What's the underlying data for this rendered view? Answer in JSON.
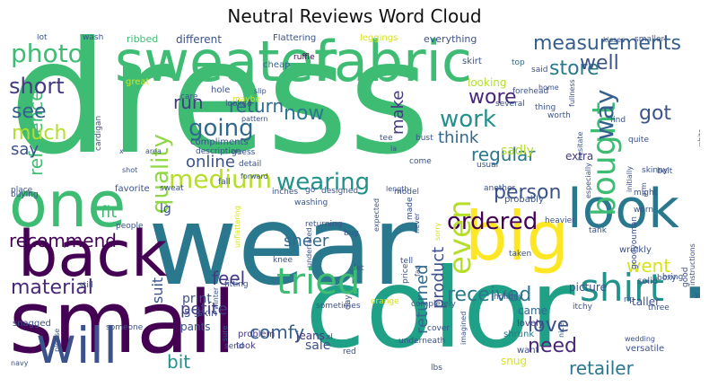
{
  "title": "Neutral Reviews Word Cloud",
  "words": [
    {
      "text": "dress",
      "color": "#3fbc73"
    },
    {
      "text": "wear",
      "color": "#2a788e"
    },
    {
      "text": "size",
      "color": "#2a788e"
    },
    {
      "text": "color",
      "color": "#1fa187"
    },
    {
      "text": "small",
      "color": "#440154"
    },
    {
      "text": "back",
      "color": "#440154"
    },
    {
      "text": "sweater",
      "color": "#3fbc73"
    },
    {
      "text": "fabric",
      "color": "#3fbc73"
    },
    {
      "text": "big",
      "color": "#fde725"
    },
    {
      "text": "one",
      "color": "#3fbc73"
    },
    {
      "text": "look",
      "color": "#2a788e"
    },
    {
      "text": "will",
      "color": "#3b528b"
    },
    {
      "text": "tried",
      "color": "#3fbc73"
    },
    {
      "text": "shirt",
      "color": "#21918c"
    },
    {
      "text": "bought",
      "color": "#3fbc73"
    },
    {
      "text": "measurements",
      "color": "#355f8d"
    },
    {
      "text": "photo",
      "color": "#3fbc73"
    },
    {
      "text": "wearing",
      "color": "#21918c"
    },
    {
      "text": "quality",
      "color": "#8fd744"
    },
    {
      "text": "medium",
      "color": "#b5de2b"
    },
    {
      "text": "ordered",
      "color": "#440154"
    },
    {
      "text": "work",
      "color": "#21918c"
    },
    {
      "text": "going",
      "color": "#31688e"
    },
    {
      "text": "received",
      "color": "#2a788e"
    },
    {
      "text": "material",
      "color": "#482878"
    },
    {
      "text": "even",
      "color": "#b5de2b"
    },
    {
      "text": "way",
      "color": "#355f8d"
    },
    {
      "text": "retailer",
      "color": "#2a788e"
    },
    {
      "text": "store",
      "color": "#2a788e"
    },
    {
      "text": "well",
      "color": "#3b528b"
    },
    {
      "text": "wore",
      "color": "#482878"
    },
    {
      "text": "reference",
      "color": "#3fbc73"
    },
    {
      "text": "short",
      "color": "#443983"
    },
    {
      "text": "much",
      "color": "#b5de2b"
    },
    {
      "text": "run",
      "color": "#443983"
    },
    {
      "text": "see",
      "color": "#355f8d"
    },
    {
      "text": "return",
      "color": "#31688e"
    },
    {
      "text": "now",
      "color": "#2a788e"
    },
    {
      "text": "love",
      "color": "#3b528b"
    },
    {
      "text": "need",
      "color": "#482878"
    },
    {
      "text": "got",
      "color": "#3b528b"
    },
    {
      "text": "feel",
      "color": "#443983"
    },
    {
      "text": "sheer",
      "color": "#31688e"
    },
    {
      "text": "comfy",
      "color": "#355f8d"
    },
    {
      "text": "bit",
      "color": "#21918c"
    },
    {
      "text": "petite",
      "color": "#443983"
    },
    {
      "text": "person",
      "color": "#3b528b"
    },
    {
      "text": "online",
      "color": "#3b528b"
    },
    {
      "text": "fit",
      "color": "#3fbc73"
    },
    {
      "text": "recommend",
      "color": "#440154"
    },
    {
      "text": "regular",
      "color": "#2a788e"
    },
    {
      "text": "think",
      "color": "#31688e"
    },
    {
      "text": "make",
      "color": "#443983"
    },
    {
      "text": "say",
      "color": "#3b528b"
    },
    {
      "text": "product",
      "color": "#3b528b"
    },
    {
      "text": "returned",
      "color": "#31688e"
    },
    {
      "text": "went",
      "color": "#d8e219"
    },
    {
      "text": "suit",
      "color": "#3b528b"
    },
    {
      "text": "lg",
      "color": "#3b528b"
    },
    {
      "text": "print",
      "color": "#3b528b"
    },
    {
      "text": "5'3",
      "color": "#3b528b"
    },
    {
      "text": "pants",
      "color": "#3b528b"
    },
    {
      "text": "skin",
      "color": "#3b528b"
    },
    {
      "text": "sale",
      "color": "#3b528b"
    },
    {
      "text": "jeans",
      "color": "#443983"
    },
    {
      "text": "problem",
      "color": "#443983"
    },
    {
      "text": "took",
      "color": "#443983"
    },
    {
      "text": "extra",
      "color": "#443983"
    },
    {
      "text": "lovely",
      "color": "#443983"
    },
    {
      "text": "shrunk",
      "color": "#2a788e"
    },
    {
      "text": "want",
      "color": "#3b528b"
    },
    {
      "text": "snug",
      "color": "#d8e219"
    },
    {
      "text": "came",
      "color": "#31688e"
    },
    {
      "text": "picture",
      "color": "#3b528b"
    },
    {
      "text": "taller",
      "color": "#3b528b"
    },
    {
      "text": "versatile",
      "color": "#3b528b"
    },
    {
      "text": "sadly",
      "color": "#b5de2b"
    },
    {
      "text": "probably",
      "color": "#3b528b"
    },
    {
      "text": "different",
      "color": "#3b528b"
    },
    {
      "text": "everything",
      "color": "#3b528b"
    },
    {
      "text": "wash",
      "color": "#3b528b"
    },
    {
      "text": "lot",
      "color": "#3b528b"
    },
    {
      "text": "ribbed",
      "color": "#3fbc73"
    },
    {
      "text": "Flattering",
      "color": "#3b528b"
    },
    {
      "text": "leggings",
      "color": "#d8e219"
    },
    {
      "text": "smaller",
      "color": "#3b528b"
    },
    {
      "text": "cheap",
      "color": "#31688e"
    },
    {
      "text": "ruffle",
      "color": "#440154"
    },
    {
      "text": "skirt",
      "color": "#3b528b"
    },
    {
      "text": "top",
      "color": "#31688e"
    },
    {
      "text": "said",
      "color": "#3b528b"
    },
    {
      "text": "looking",
      "color": "#b5de2b"
    },
    {
      "text": "hole",
      "color": "#3b528b"
    },
    {
      "text": "looked",
      "color": "#3b528b"
    },
    {
      "text": "several",
      "color": "#3b528b"
    },
    {
      "text": "thing",
      "color": "#3b528b"
    },
    {
      "text": "worth",
      "color": "#3b528b"
    },
    {
      "text": "find",
      "color": "#3b528b"
    },
    {
      "text": "quite",
      "color": "#3b528b"
    },
    {
      "text": "skinny",
      "color": "#3b528b"
    },
    {
      "text": "belt",
      "color": "#3b528b"
    },
    {
      "text": "compliments",
      "color": "#3b528b"
    },
    {
      "text": "description",
      "color": "#3b528b"
    },
    {
      "text": "maybe",
      "color": "#d8e219"
    },
    {
      "text": "great",
      "color": "#d8e219"
    },
    {
      "text": "care",
      "color": "#3b528b"
    },
    {
      "text": "guess",
      "color": "#3b528b"
    },
    {
      "text": "fall",
      "color": "#3b528b"
    },
    {
      "text": "detail",
      "color": "#3b528b"
    },
    {
      "text": "cardigan",
      "color": "#3b528b"
    },
    {
      "text": "tee",
      "color": "#3b528b"
    },
    {
      "text": "come",
      "color": "#3b528b"
    },
    {
      "text": "bust",
      "color": "#3b528b"
    },
    {
      "text": "usual",
      "color": "#3b528b"
    },
    {
      "text": "another",
      "color": "#3b528b"
    },
    {
      "text": "might",
      "color": "#3b528b"
    },
    {
      "text": "worn",
      "color": "#3b528b"
    },
    {
      "text": "buying",
      "color": "#3b528b"
    },
    {
      "text": "place",
      "color": "#3b528b"
    },
    {
      "text": "favorite",
      "color": "#3b528b"
    },
    {
      "text": "sweat",
      "color": "#3b528b"
    },
    {
      "text": "inches",
      "color": "#3b528b"
    },
    {
      "text": "go",
      "color": "#3b528b"
    },
    {
      "text": "designed",
      "color": "#3b528b"
    },
    {
      "text": "model",
      "color": "#3b528b"
    },
    {
      "text": "people",
      "color": "#3b528b"
    },
    {
      "text": "washing",
      "color": "#3b528b"
    },
    {
      "text": "returning",
      "color": "#3b528b"
    },
    {
      "text": "buy",
      "color": "#3b528b"
    },
    {
      "text": "made",
      "color": "#3b528b"
    },
    {
      "text": "still",
      "color": "#3b528b"
    },
    {
      "text": "let",
      "color": "#3b528b"
    },
    {
      "text": "knee",
      "color": "#3b528b"
    },
    {
      "text": "tank",
      "color": "#3b528b"
    },
    {
      "text": "taken",
      "color": "#3b528b"
    },
    {
      "text": "heavier",
      "color": "#3b528b"
    },
    {
      "text": "wrinkly",
      "color": "#3b528b"
    },
    {
      "text": "solid",
      "color": "#3b528b"
    },
    {
      "text": "fitting",
      "color": "#3b528b"
    },
    {
      "text": "orange",
      "color": "#d8e219"
    },
    {
      "text": "day",
      "color": "#3b528b"
    },
    {
      "text": "completely",
      "color": "#3b528b"
    },
    {
      "text": "holiday",
      "color": "#3b528b"
    },
    {
      "text": "itchy",
      "color": "#3b528b"
    },
    {
      "text": "bring",
      "color": "#3b528b"
    },
    {
      "text": "side",
      "color": "#3b528b"
    },
    {
      "text": "boxy",
      "color": "#3b528b"
    },
    {
      "text": "three",
      "color": "#3b528b"
    },
    {
      "text": "rip",
      "color": "#3b528b"
    },
    {
      "text": "send",
      "color": "#3b528b"
    },
    {
      "text": "snagged",
      "color": "#3b528b"
    },
    {
      "text": "someone",
      "color": "#3b528b"
    },
    {
      "text": "underneath",
      "color": "#3b528b"
    },
    {
      "text": "xl",
      "color": "#3b528b"
    },
    {
      "text": "red",
      "color": "#3b528b"
    },
    {
      "text": "lbs",
      "color": "#3b528b"
    },
    {
      "text": "cover",
      "color": "#3b528b"
    },
    {
      "text": "navy",
      "color": "#3b528b"
    },
    {
      "text": "tell",
      "color": "#3b528b"
    },
    {
      "text": "x",
      "color": "#3b528b"
    },
    {
      "text": "area",
      "color": "#3b528b"
    },
    {
      "text": "shot",
      "color": "#3b528b"
    },
    {
      "text": "home",
      "color": "#3b528b"
    },
    {
      "text": "forehead",
      "color": "#3b528b"
    },
    {
      "text": "la",
      "color": "#3b528b"
    },
    {
      "text": "length",
      "color": "#3b528b"
    },
    {
      "text": "forward",
      "color": "#3b528b"
    },
    {
      "text": "pattern",
      "color": "#3b528b"
    },
    {
      "text": "slip",
      "color": "#3b528b"
    },
    {
      "text": "kisses",
      "color": "#3b528b"
    },
    {
      "text": "goodyouman",
      "color": "#3b528b"
    },
    {
      "text": "good",
      "color": "#3b528b"
    },
    {
      "text": "instructions",
      "color": "#3b528b"
    },
    {
      "text": "white",
      "color": "#3b528b"
    },
    {
      "text": "fullness",
      "color": "#3b528b"
    },
    {
      "text": "unflattering",
      "color": "#d8e219"
    },
    {
      "text": "underrated",
      "color": "#3b528b"
    },
    {
      "text": "expected",
      "color": "#3b528b"
    },
    {
      "text": "price",
      "color": "#3b528b"
    },
    {
      "text": "never",
      "color": "#3b528b"
    },
    {
      "text": "sorry",
      "color": "#d8e219"
    },
    {
      "text": "arm",
      "color": "#3b528b"
    },
    {
      "text": "especially",
      "color": "#3b528b"
    },
    {
      "text": "initially",
      "color": "#3b528b"
    },
    {
      "text": "hesitate",
      "color": "#3b528b"
    },
    {
      "text": "please",
      "color": "#3b528b"
    },
    {
      "text": "sure",
      "color": "#3b528b"
    },
    {
      "text": "nice",
      "color": "#3b528b"
    },
    {
      "text": "imagined",
      "color": "#3b528b"
    },
    {
      "text": "wedding",
      "color": "#3b528b"
    },
    {
      "text": "winter",
      "color": "#3b528b"
    },
    {
      "text": "sometimes",
      "color": "#3b528b"
    },
    {
      "text": "fan",
      "color": "#3b528b"
    },
    {
      "text": "around",
      "color": "#3b528b"
    },
    {
      "text": "tailor",
      "color": "#3b528b"
    },
    {
      "text": "shape",
      "color": "#3b528b"
    }
  ]
}
